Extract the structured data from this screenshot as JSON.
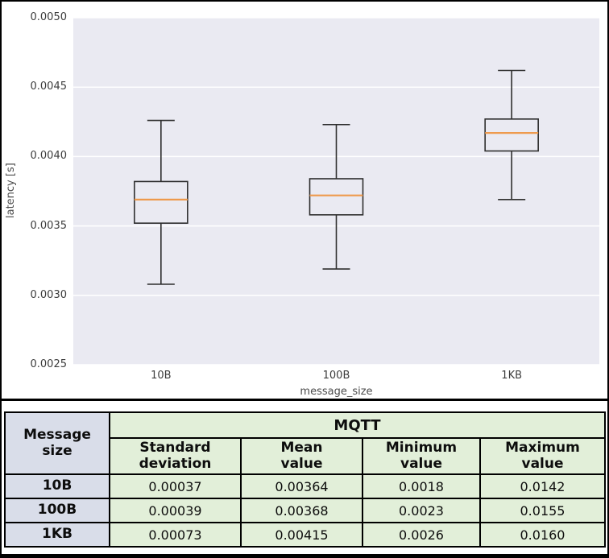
{
  "chart_data": {
    "type": "boxplot",
    "title": "",
    "xlabel": "message_size",
    "ylabel": "latency [s]",
    "categories": [
      "10B",
      "100B",
      "1KB"
    ],
    "ylim": [
      0.0025,
      0.005
    ],
    "yticks": [
      0.0025,
      0.003,
      0.0035,
      0.004,
      0.0045,
      0.005
    ],
    "grid": true,
    "legend": "none",
    "series": [
      {
        "category": "10B",
        "whisker_low": 0.00308,
        "q1": 0.00352,
        "median": 0.00369,
        "q3": 0.00382,
        "whisker_high": 0.00426
      },
      {
        "category": "100B",
        "whisker_low": 0.00319,
        "q1": 0.00358,
        "median": 0.00372,
        "q3": 0.00384,
        "whisker_high": 0.00423
      },
      {
        "category": "1KB",
        "whisker_low": 0.00369,
        "q1": 0.00404,
        "median": 0.00417,
        "q3": 0.00427,
        "whisker_high": 0.00462
      }
    ]
  },
  "colors": {
    "plot_background": "#eaeaf2",
    "gridline": "#ffffff",
    "box_edge": "#2e2e2e",
    "median": "#ee9a4d",
    "table_label_bg": "#d9dde9",
    "table_value_bg": "#e2efd9",
    "border": "#000000"
  },
  "table": {
    "corner_header": "Message\nsize",
    "group_header": "MQTT",
    "columns": [
      "Standard\ndeviation",
      "Mean\nvalue",
      "Minimum\nvalue",
      "Maximum\nvalue"
    ],
    "rows": [
      {
        "label": "10B",
        "values": [
          "0.00037",
          "0.00364",
          "0.0018",
          "0.0142"
        ]
      },
      {
        "label": "100B",
        "values": [
          "0.00039",
          "0.00368",
          "0.0023",
          "0.0155"
        ]
      },
      {
        "label": "1KB",
        "values": [
          "0.00073",
          "0.00415",
          "0.0026",
          "0.0160"
        ]
      }
    ]
  }
}
